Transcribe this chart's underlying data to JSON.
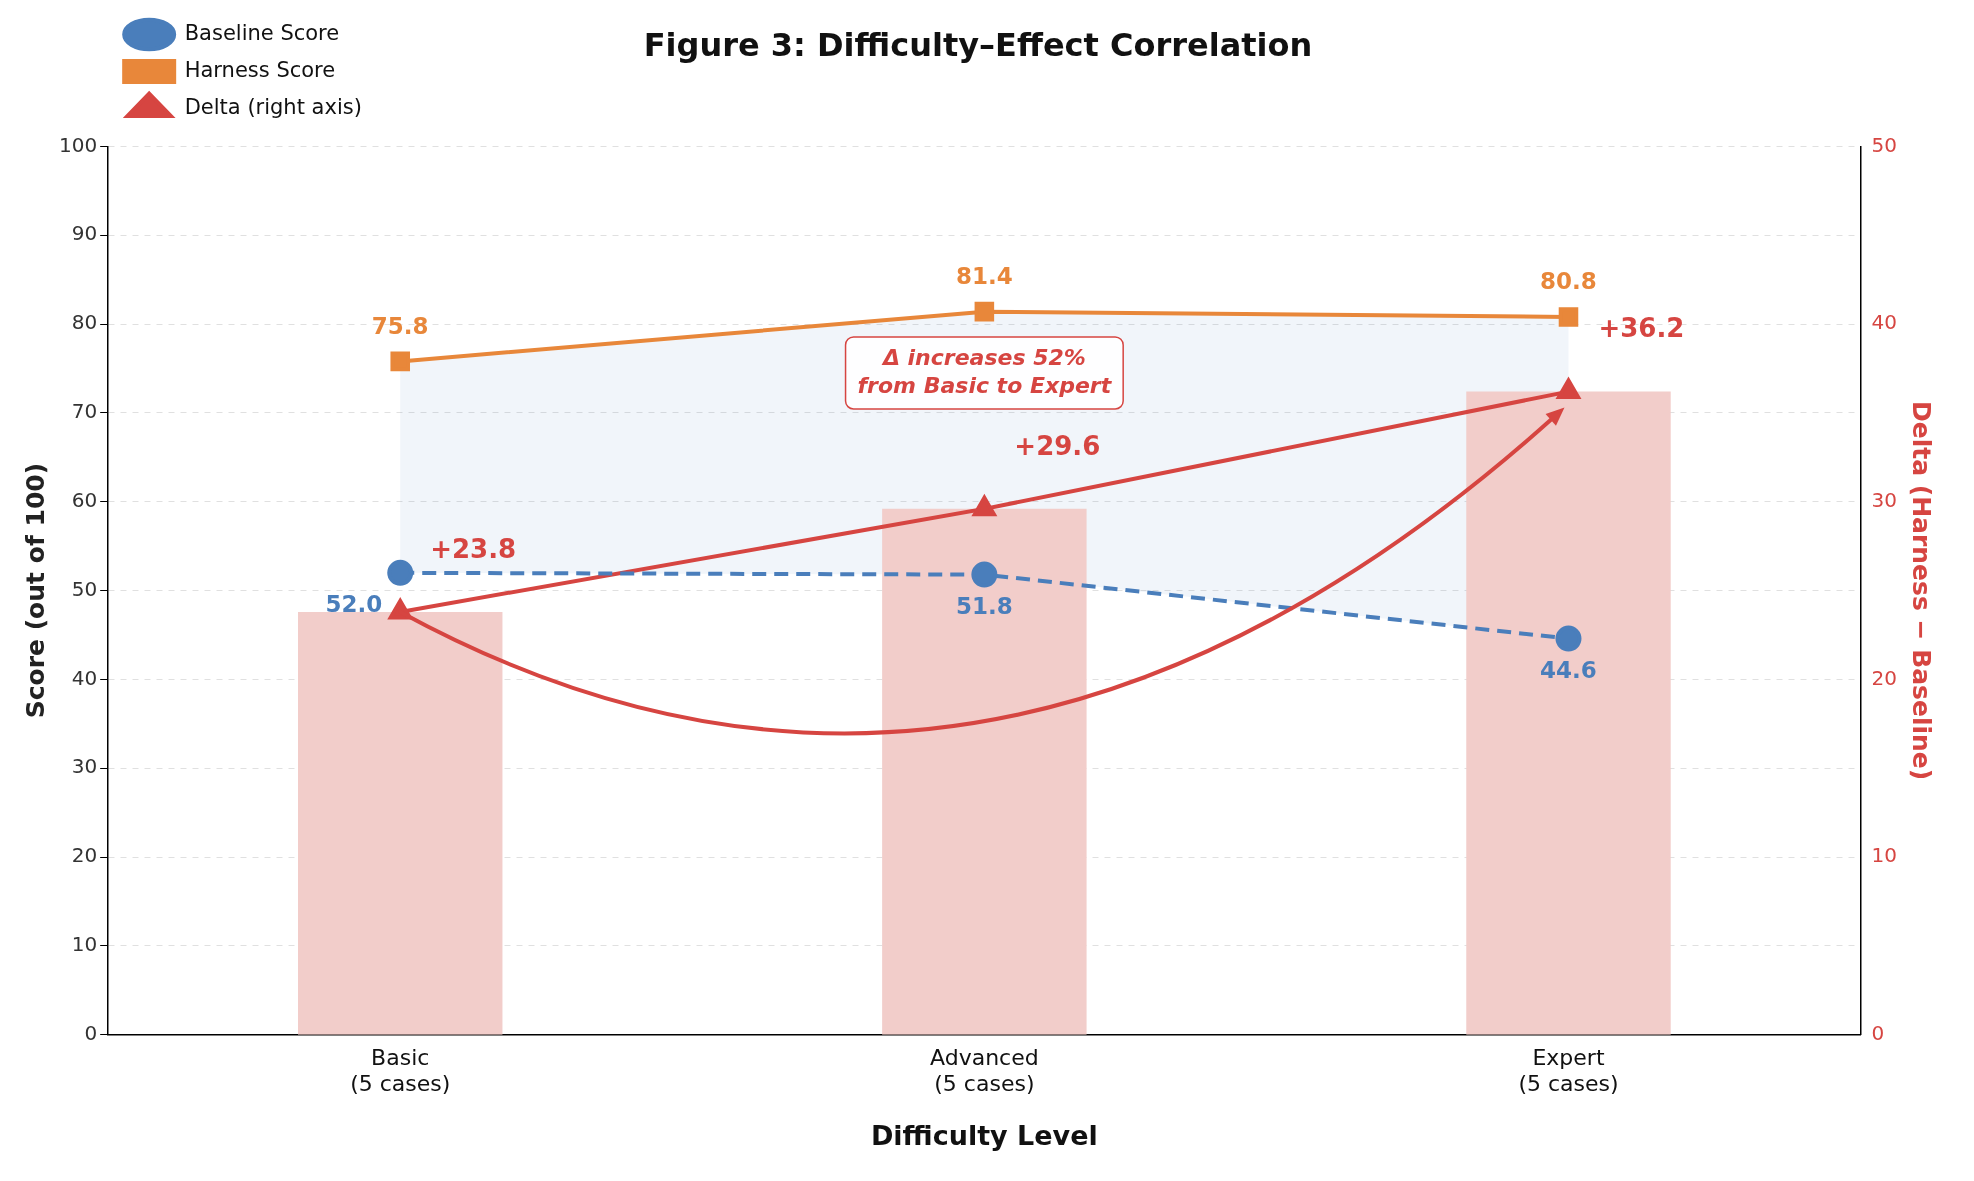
{
  "chart_data": {
    "type": "line",
    "title": "Figure 3: Difficulty–Effect Correlation",
    "xlabel": "Difficulty Level",
    "ylabel": "Score (out of 100)",
    "y2label": "Delta (Harness − Baseline)",
    "categories": [
      "Basic\n(5 cases)",
      "Advanced\n(5 cases)",
      "Expert\n(5 cases)"
    ],
    "ylim": [
      0,
      100
    ],
    "yticks": [
      0,
      10,
      20,
      30,
      40,
      50,
      60,
      70,
      80,
      90,
      100
    ],
    "y2lim": [
      0,
      50
    ],
    "y2ticks": [
      0,
      10,
      20,
      30,
      40,
      50
    ],
    "grid": "y",
    "legend": "top left",
    "series": [
      {
        "type": "bar",
        "axis": "y2",
        "color": "#f2cdca",
        "values": [
          23.8,
          29.6,
          36.2
        ]
      },
      {
        "name": "Baseline Score",
        "color": "#4a7ebb",
        "marker": "circle",
        "line_style": "dashed",
        "values": [
          52.0,
          51.8,
          44.6
        ],
        "value_labels": [
          "52.0",
          "51.8",
          "44.6"
        ],
        "lower": [
          52.0,
          51.8,
          44.6
        ],
        "upper": [
          75.8,
          81.4,
          80.8
        ]
      },
      {
        "name": "Harness Score",
        "color": "#e8873a",
        "marker": "square",
        "line_style": "solid",
        "values": [
          75.8,
          81.4,
          80.8
        ],
        "value_labels": [
          "75.8",
          "81.4",
          "80.8"
        ]
      },
      {
        "name": "Delta (right axis)",
        "axis": "y2",
        "color": "#d64541",
        "marker": "triangle",
        "line_style": "solid",
        "values": [
          23.8,
          29.6,
          36.2
        ],
        "value_labels": [
          "+23.8",
          "+29.6",
          "+36.2"
        ]
      }
    ],
    "annotations": [
      "Δ increases 52%\nfrom Basic to Expert"
    ]
  }
}
